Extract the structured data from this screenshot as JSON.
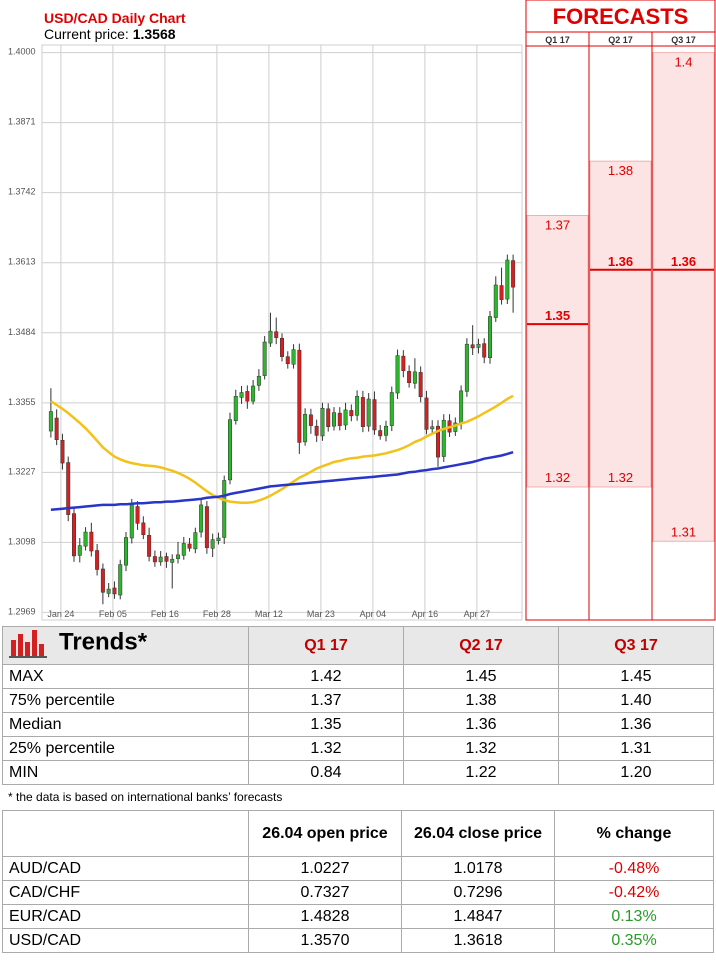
{
  "chart_title": "USD/CAD Daily Chart",
  "current_price_label": "Current price:",
  "current_price": "1.3568",
  "forecasts": {
    "title": "FORECASTS",
    "quarters": [
      "Q1 17",
      "Q2 17",
      "Q3 17"
    ],
    "bands": [
      {
        "quarter": "Q1 17",
        "max_label": "1.37",
        "median_label": "1.35",
        "min_label": "1.32",
        "max": 1.37,
        "median": 1.35,
        "min": 1.32
      },
      {
        "quarter": "Q2 17",
        "max_label": "1.38",
        "median_label": "1.36",
        "min_label": "1.32",
        "max": 1.38,
        "median": 1.36,
        "min": 1.32
      },
      {
        "quarter": "Q3 17",
        "max_label": "1.4",
        "median_label": "1.36",
        "min_label": "1.31",
        "max": 1.4,
        "median": 1.36,
        "min": 1.31
      }
    ]
  },
  "chart_data": {
    "type": "candlestick",
    "title": "USD/CAD Daily Chart",
    "y_ticks": [
      "1.4000",
      "1.3871",
      "1.3742",
      "1.3613",
      "1.3484",
      "1.3355",
      "1.3227",
      "1.3098",
      "1.2969"
    ],
    "ylim": [
      1.2955,
      1.4014
    ],
    "x_ticks": [
      "Jan 24",
      "Feb 05",
      "Feb 16",
      "Feb 28",
      "Mar 12",
      "Mar 23",
      "Apr 04",
      "Apr 16",
      "Apr 27"
    ],
    "grid": true,
    "candles": [
      [
        1.3303,
        1.3339,
        1.3291,
        1.3382
      ],
      [
        1.3327,
        1.3287,
        1.3277,
        1.3343
      ],
      [
        1.3286,
        1.3244,
        1.3232,
        1.3298
      ],
      [
        1.3245,
        1.3149,
        1.3137,
        1.3256
      ],
      [
        1.3151,
        1.3073,
        1.3062,
        1.3162
      ],
      [
        1.3074,
        1.3092,
        1.3061,
        1.3106
      ],
      [
        1.3091,
        1.3117,
        1.3083,
        1.3126
      ],
      [
        1.3117,
        1.3082,
        1.3072,
        1.3134
      ],
      [
        1.3083,
        1.3048,
        1.3037,
        1.3095
      ],
      [
        1.3049,
        1.3006,
        1.2984,
        1.3059
      ],
      [
        1.3004,
        1.3012,
        1.2997,
        1.3023
      ],
      [
        1.3014,
        1.3003,
        1.2994,
        1.3026
      ],
      [
        1.3001,
        1.3057,
        1.2993,
        1.3066
      ],
      [
        1.3056,
        1.3107,
        1.3045,
        1.3117
      ],
      [
        1.3106,
        1.3167,
        1.3096,
        1.3178
      ],
      [
        1.3164,
        1.3133,
        1.3121,
        1.3174
      ],
      [
        1.3134,
        1.3112,
        1.3104,
        1.3146
      ],
      [
        1.3111,
        1.3072,
        1.3063,
        1.3125
      ],
      [
        1.3072,
        1.3062,
        1.3053,
        1.3083
      ],
      [
        1.3062,
        1.3071,
        1.3055,
        1.3082
      ],
      [
        1.3072,
        1.3063,
        1.3051,
        1.3079
      ],
      [
        1.3061,
        1.3067,
        1.3013,
        1.3076
      ],
      [
        1.3068,
        1.3075,
        1.3059,
        1.3099
      ],
      [
        1.3074,
        1.3096,
        1.3066,
        1.3108
      ],
      [
        1.3095,
        1.3087,
        1.3081,
        1.3106
      ],
      [
        1.3086,
        1.3116,
        1.3078,
        1.3125
      ],
      [
        1.3117,
        1.3167,
        1.3107,
        1.3177
      ],
      [
        1.3164,
        1.3088,
        1.3077,
        1.3174
      ],
      [
        1.3087,
        1.3103,
        1.3071,
        1.3114
      ],
      [
        1.3101,
        1.3106,
        1.3094,
        1.3116
      ],
      [
        1.3107,
        1.3212,
        1.3095,
        1.3221
      ],
      [
        1.3213,
        1.3324,
        1.3205,
        1.3337
      ],
      [
        1.3322,
        1.3367,
        1.3315,
        1.3379
      ],
      [
        1.3365,
        1.3374,
        1.3353,
        1.3386
      ],
      [
        1.3376,
        1.3358,
        1.3344,
        1.3387
      ],
      [
        1.3358,
        1.3386,
        1.3352,
        1.3397
      ],
      [
        1.3387,
        1.3404,
        1.3377,
        1.3417
      ],
      [
        1.3405,
        1.3467,
        1.3398,
        1.3478
      ],
      [
        1.3465,
        1.3487,
        1.3458,
        1.3521
      ],
      [
        1.3486,
        1.3475,
        1.3463,
        1.3512
      ],
      [
        1.3474,
        1.344,
        1.3431,
        1.3483
      ],
      [
        1.344,
        1.3427,
        1.3418,
        1.345
      ],
      [
        1.3426,
        1.3453,
        1.3418,
        1.3463
      ],
      [
        1.3452,
        1.3282,
        1.3261,
        1.3464
      ],
      [
        1.3283,
        1.3334,
        1.3276,
        1.3345
      ],
      [
        1.3333,
        1.3313,
        1.3298,
        1.3344
      ],
      [
        1.3312,
        1.3295,
        1.3283,
        1.3324
      ],
      [
        1.3294,
        1.3345,
        1.3285,
        1.3355
      ],
      [
        1.3344,
        1.3311,
        1.3302,
        1.3354
      ],
      [
        1.3312,
        1.3337,
        1.3304,
        1.3347
      ],
      [
        1.3336,
        1.3313,
        1.3304,
        1.3347
      ],
      [
        1.3314,
        1.3342,
        1.3305,
        1.3355
      ],
      [
        1.3341,
        1.3331,
        1.3321,
        1.3352
      ],
      [
        1.3332,
        1.3367,
        1.3322,
        1.3378
      ],
      [
        1.3365,
        1.3311,
        1.3301,
        1.3377
      ],
      [
        1.3312,
        1.3362,
        1.3302,
        1.3373
      ],
      [
        1.3361,
        1.3305,
        1.3296,
        1.3376
      ],
      [
        1.3304,
        1.3294,
        1.3287,
        1.3314
      ],
      [
        1.3295,
        1.3312,
        1.3284,
        1.3322
      ],
      [
        1.3313,
        1.3374,
        1.3303,
        1.3385
      ],
      [
        1.3373,
        1.3442,
        1.3362,
        1.3453
      ],
      [
        1.3441,
        1.3414,
        1.3402,
        1.3452
      ],
      [
        1.3413,
        1.3392,
        1.3383,
        1.3424
      ],
      [
        1.3391,
        1.3412,
        1.3381,
        1.3437
      ],
      [
        1.3411,
        1.3366,
        1.3356,
        1.3422
      ],
      [
        1.3364,
        1.3306,
        1.3297,
        1.3377
      ],
      [
        1.3307,
        1.3311,
        1.3297,
        1.3323
      ],
      [
        1.3312,
        1.3255,
        1.3237,
        1.3323
      ],
      [
        1.3256,
        1.3323,
        1.3246,
        1.3334
      ],
      [
        1.3322,
        1.3301,
        1.3292,
        1.3334
      ],
      [
        1.3302,
        1.3318,
        1.3294,
        1.3328
      ],
      [
        1.3317,
        1.3377,
        1.3306,
        1.3387
      ],
      [
        1.3376,
        1.3463,
        1.3366,
        1.3474
      ],
      [
        1.3462,
        1.3456,
        1.3443,
        1.3498
      ],
      [
        1.3457,
        1.3463,
        1.3446,
        1.3473
      ],
      [
        1.3464,
        1.3439,
        1.3428,
        1.3474
      ],
      [
        1.3438,
        1.3514,
        1.3427,
        1.3524
      ],
      [
        1.3512,
        1.3572,
        1.3504,
        1.3588
      ],
      [
        1.3571,
        1.3545,
        1.3536,
        1.3604
      ],
      [
        1.3546,
        1.3618,
        1.3537,
        1.3628
      ],
      [
        1.3617,
        1.3568,
        1.3521,
        1.3628
      ]
    ],
    "series": [
      {
        "values": [
          1.3358,
          1.3351,
          1.3344,
          1.3336,
          1.3327,
          1.3318,
          1.3308,
          1.3297,
          1.3285,
          1.3273,
          1.3264,
          1.3256,
          1.3251,
          1.3247,
          1.3244,
          1.3242,
          1.324,
          1.3239,
          1.3238,
          1.3236,
          1.3233,
          1.323,
          1.3226,
          1.3221,
          1.3215,
          1.3208,
          1.32,
          1.3192,
          1.3185,
          1.318,
          1.3176,
          1.3173,
          1.3172,
          1.3171,
          1.3171,
          1.3172,
          1.3175,
          1.3179,
          1.3184,
          1.319,
          1.3196,
          1.3203,
          1.321,
          1.3217,
          1.3222,
          1.3228,
          1.3234,
          1.3238,
          1.3242,
          1.3246,
          1.3248,
          1.3251,
          1.3253,
          1.3254,
          1.3256,
          1.3257,
          1.3258,
          1.326,
          1.3262,
          1.3265,
          1.3268,
          1.3272,
          1.3277,
          1.3283,
          1.3287,
          1.3293,
          1.3298,
          1.3303,
          1.3307,
          1.331,
          1.3313,
          1.3317,
          1.332,
          1.3325,
          1.333,
          1.3336,
          1.3342,
          1.3348,
          1.3355,
          1.3362,
          1.3368
        ]
      },
      {
        "values": [
          1.3158,
          1.3159,
          1.316,
          1.3161,
          1.3162,
          1.3163,
          1.3164,
          1.3165,
          1.3166,
          1.3167,
          1.3167,
          1.3167,
          1.3168,
          1.3168,
          1.3169,
          1.317,
          1.317,
          1.3171,
          1.3172,
          1.3172,
          1.3173,
          1.3173,
          1.3174,
          1.3175,
          1.3176,
          1.3177,
          1.3178,
          1.318,
          1.3181,
          1.3182,
          1.3184,
          1.3187,
          1.3189,
          1.3191,
          1.3193,
          1.3195,
          1.3197,
          1.3199,
          1.3201,
          1.3202,
          1.3203,
          1.3204,
          1.3205,
          1.3206,
          1.3207,
          1.3208,
          1.3209,
          1.321,
          1.3211,
          1.3212,
          1.3213,
          1.3214,
          1.3215,
          1.3216,
          1.3217,
          1.3218,
          1.3219,
          1.322,
          1.3221,
          1.3222,
          1.3223,
          1.3225,
          1.3227,
          1.3228,
          1.323,
          1.3231,
          1.3233,
          1.3234,
          1.3236,
          1.3238,
          1.324,
          1.3242,
          1.3244,
          1.3246,
          1.3249,
          1.3252,
          1.3254,
          1.3256,
          1.3258,
          1.3261,
          1.3264
        ]
      }
    ]
  },
  "trends": {
    "title": "Trends*",
    "columns": [
      "Q1 17",
      "Q2 17",
      "Q3 17"
    ],
    "rows": [
      {
        "label": "MAX",
        "values": [
          "1.42",
          "1.45",
          "1.45"
        ]
      },
      {
        "label": "75% percentile",
        "values": [
          "1.37",
          "1.38",
          "1.40"
        ]
      },
      {
        "label": "Median",
        "values": [
          "1.35",
          "1.36",
          "1.36"
        ]
      },
      {
        "label": "25% percentile",
        "values": [
          "1.32",
          "1.32",
          "1.31"
        ]
      },
      {
        "label": "MIN",
        "values": [
          "0.84",
          "1.22",
          "1.20"
        ]
      }
    ],
    "note": "* the data is based on international banks’ forecasts"
  },
  "fx": {
    "headers": [
      "26.04 open price",
      "26.04 close price",
      "% change"
    ],
    "rows": [
      {
        "pair": "AUD/CAD",
        "open": "1.0227",
        "close": "1.0178",
        "change": "-0.48%",
        "dir": "neg"
      },
      {
        "pair": "CAD/CHF",
        "open": "0.7327",
        "close": "0.7296",
        "change": "-0.42%",
        "dir": "neg"
      },
      {
        "pair": "EUR/CAD",
        "open": "1.4828",
        "close": "1.4847",
        "change": "0.13%",
        "dir": "pos"
      },
      {
        "pair": "USD/CAD",
        "open": "1.3570",
        "close": "1.3618",
        "change": "0.35%",
        "dir": "pos"
      }
    ]
  },
  "colors": {
    "bull": "#2db52d",
    "bear": "#d42020",
    "ma_fast": "#f2c21a",
    "ma_slow": "#2835c8",
    "forecast": "#e00000",
    "band": "#fde4e4"
  }
}
